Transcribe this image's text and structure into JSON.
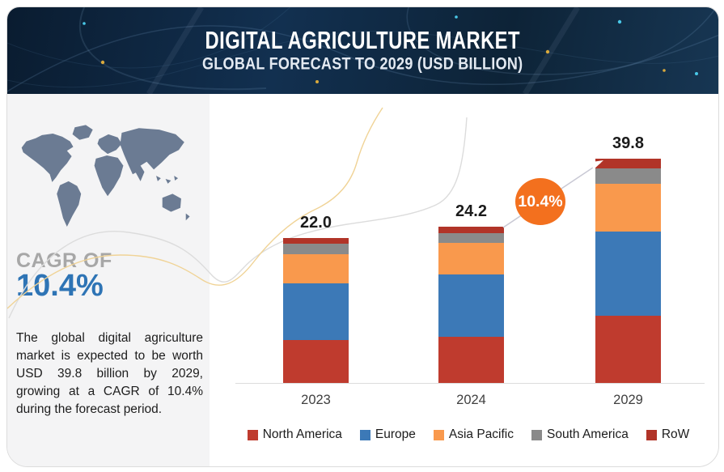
{
  "header": {
    "title": "DIGITAL AGRICULTURE MARKET",
    "subtitle": "GLOBAL FORECAST TO 2029 (USD BILLION)"
  },
  "sidebar": {
    "cagr_label": "CAGR OF",
    "cagr_value": "10.4%",
    "description": "The global digital agriculture market is expected to be worth USD 39.8 billion by 2029, growing at a CAGR of 10.4% during the forecast period."
  },
  "chart_data": {
    "type": "bar",
    "stacked": true,
    "title": "Digital Agriculture Market, Global Forecast to 2029 (USD Billion)",
    "unit": "USD Billion",
    "categories": [
      "2023",
      "2024",
      "2029"
    ],
    "totals": [
      22.0,
      24.2,
      39.8
    ],
    "value_labels": [
      "22.0",
      "24.2",
      "39.8"
    ],
    "series": [
      {
        "name": "North America",
        "color": "#bf3b2e",
        "values": [
          6.5,
          7.2,
          11.9
        ]
      },
      {
        "name": "Europe",
        "color": "#3c79b7",
        "values": [
          8.6,
          9.6,
          15.0
        ]
      },
      {
        "name": "Asia Pacific",
        "color": "#f9994d",
        "values": [
          4.5,
          4.9,
          8.5
        ]
      },
      {
        "name": "South America",
        "color": "#8a8a8a",
        "values": [
          1.5,
          1.5,
          2.7
        ]
      },
      {
        "name": "RoW",
        "color": "#b13428",
        "values": [
          0.9,
          1.0,
          1.7
        ]
      }
    ],
    "annotation": {
      "cagr_badge": "10.4%",
      "badge_color": "#f3701e"
    },
    "legend_position": "bottom",
    "grid": false,
    "ylim": [
      0,
      42
    ]
  }
}
